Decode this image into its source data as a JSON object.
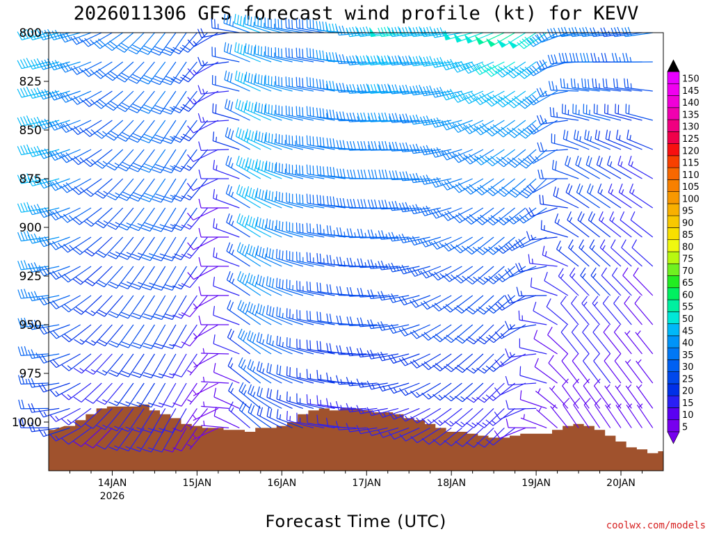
{
  "chart_data": {
    "type": "wind-barb-time-height",
    "title": "2026011306 GFS forecast wind profile (kt) for KEVV",
    "xlabel": "Forecast Time (UTC)",
    "ylabel": "",
    "credit": "coolwx.com/models",
    "x_range_hours": [
      0,
      174
    ],
    "x_step_hours": 3,
    "x_ticks": [
      {
        "label": "14JAN",
        "sublabel": "2026",
        "hour": 18
      },
      {
        "label": "15JAN",
        "sublabel": "",
        "hour": 42
      },
      {
        "label": "16JAN",
        "sublabel": "",
        "hour": 66
      },
      {
        "label": "17JAN",
        "sublabel": "",
        "hour": 90
      },
      {
        "label": "18JAN",
        "sublabel": "",
        "hour": 114
      },
      {
        "label": "19JAN",
        "sublabel": "",
        "hour": 138
      },
      {
        "label": "20JAN",
        "sublabel": "",
        "hour": 162
      }
    ],
    "y_range_hpa": [
      800,
      1025
    ],
    "y_ticks": [
      "800",
      "825",
      "850",
      "875",
      "900",
      "925",
      "950",
      "975",
      "1000"
    ],
    "pressure_levels": [
      800,
      815,
      830,
      845,
      860,
      875,
      890,
      905,
      920,
      935,
      950,
      965,
      980,
      993,
      1003
    ],
    "colorbar": {
      "min": 0,
      "max": 150,
      "step": 5,
      "labels": [
        "5",
        "10",
        "15",
        "20",
        "25",
        "30",
        "35",
        "40",
        "45",
        "50",
        "55",
        "60",
        "65",
        "70",
        "75",
        "80",
        "85",
        "90",
        "95",
        "100",
        "105",
        "110",
        "115",
        "120",
        "125",
        "130",
        "135",
        "140",
        "145",
        "150"
      ],
      "colors": [
        "#7700ee",
        "#5a00f2",
        "#2a1ff5",
        "#0030e8",
        "#0048ec",
        "#0060f2",
        "#0078f5",
        "#0094f8",
        "#00b8f8",
        "#00e8d8",
        "#00f0a0",
        "#00f060",
        "#22ec22",
        "#70f020",
        "#b8f810",
        "#f0f810",
        "#f8e000",
        "#f8c800",
        "#f8b000",
        "#f89800",
        "#f88000",
        "#f86800",
        "#f84000",
        "#f81010",
        "#f0004a",
        "#f00080",
        "#f000b0",
        "#f000d8",
        "#f000f0",
        "#e800ff"
      ]
    },
    "terrain_profile_hpa": [
      [
        0,
        1004
      ],
      [
        6,
        1002
      ],
      [
        9,
        999
      ],
      [
        12,
        996
      ],
      [
        15,
        993
      ],
      [
        18,
        992
      ],
      [
        21,
        992
      ],
      [
        24,
        992
      ],
      [
        27,
        991
      ],
      [
        30,
        994
      ],
      [
        33,
        996
      ],
      [
        36,
        998
      ],
      [
        39,
        1001
      ],
      [
        42,
        1002
      ],
      [
        45,
        1003
      ],
      [
        48,
        1003
      ],
      [
        51,
        1004
      ],
      [
        54,
        1004
      ],
      [
        57,
        1005
      ],
      [
        60,
        1003
      ],
      [
        63,
        1003
      ],
      [
        66,
        1002
      ],
      [
        69,
        1000
      ],
      [
        72,
        996
      ],
      [
        75,
        994
      ],
      [
        78,
        993
      ],
      [
        81,
        994
      ],
      [
        84,
        993
      ],
      [
        87,
        993
      ],
      [
        90,
        994
      ],
      [
        93,
        995
      ],
      [
        96,
        995
      ],
      [
        99,
        996
      ],
      [
        102,
        998
      ],
      [
        105,
        999
      ],
      [
        108,
        1001
      ],
      [
        111,
        1003
      ],
      [
        114,
        1005
      ],
      [
        117,
        1005
      ],
      [
        120,
        1006
      ],
      [
        123,
        1007
      ],
      [
        126,
        1008
      ],
      [
        129,
        1008
      ],
      [
        132,
        1007
      ],
      [
        135,
        1006
      ],
      [
        138,
        1006
      ],
      [
        141,
        1006
      ],
      [
        144,
        1004
      ],
      [
        147,
        1002
      ],
      [
        150,
        1001
      ],
      [
        153,
        1002
      ],
      [
        156,
        1004
      ],
      [
        159,
        1007
      ],
      [
        162,
        1010
      ],
      [
        165,
        1013
      ],
      [
        168,
        1014
      ],
      [
        171,
        1016
      ],
      [
        174,
        1015
      ]
    ],
    "wind_series": [
      {
        "level_hpa": 800,
        "speed_kt": [
          42,
          40,
          38,
          36,
          32,
          26,
          26,
          30,
          30,
          30,
          30,
          30,
          28,
          28,
          22,
          20,
          16,
          18,
          24,
          34,
          40,
          36,
          36,
          34,
          30,
          28,
          28,
          30,
          38,
          40,
          36,
          40,
          44,
          48,
          45,
          40,
          42,
          44,
          44,
          44,
          48,
          48,
          48,
          50,
          50,
          48,
          48,
          46,
          38,
          30,
          30,
          30,
          30,
          32,
          26,
          24,
          28,
          30
        ],
        "dir_deg": [
          255,
          255,
          255,
          255,
          250,
          245,
          240,
          235,
          230,
          225,
          220,
          218,
          216,
          215,
          220,
          225,
          240,
          260,
          280,
          290,
          290,
          288,
          285,
          282,
          280,
          280,
          280,
          280,
          275,
          270,
          265,
          262,
          262,
          262,
          262,
          262,
          262,
          262,
          262,
          260,
          255,
          250,
          248,
          245,
          240,
          238,
          236,
          235,
          240,
          250,
          260,
          262,
          262,
          262,
          262,
          262,
          262,
          262
        ]
      },
      {
        "level_hpa": 875,
        "speed_kt": [
          42,
          40,
          36,
          32,
          28,
          24,
          22,
          24,
          26,
          28,
          28,
          30,
          28,
          26,
          22,
          16,
          10,
          10,
          14,
          26,
          44,
          44,
          40,
          38,
          34,
          34,
          32,
          30,
          30,
          30,
          30,
          30,
          30,
          30,
          30,
          30,
          30,
          32,
          32,
          30,
          30,
          30,
          30,
          32,
          32,
          30,
          30,
          28,
          22,
          20,
          20,
          20,
          22,
          22,
          18,
          16,
          14,
          14
        ],
        "dir_deg": [
          260,
          255,
          250,
          245,
          240,
          235,
          230,
          225,
          220,
          218,
          216,
          214,
          212,
          212,
          216,
          220,
          245,
          270,
          290,
          300,
          300,
          296,
          292,
          288,
          285,
          282,
          280,
          280,
          278,
          276,
          272,
          270,
          270,
          270,
          270,
          268,
          266,
          262,
          258,
          252,
          246,
          240,
          236,
          234,
          232,
          230,
          228,
          226,
          240,
          270,
          290,
          300,
          300,
          300,
          300,
          300,
          300,
          300
        ]
      },
      {
        "level_hpa": 950,
        "speed_kt": [
          32,
          28,
          24,
          20,
          18,
          16,
          16,
          18,
          20,
          20,
          20,
          20,
          18,
          16,
          12,
          8,
          6,
          8,
          12,
          22,
          34,
          34,
          30,
          28,
          26,
          24,
          22,
          20,
          20,
          20,
          20,
          20,
          20,
          20,
          20,
          20,
          20,
          20,
          20,
          20,
          20,
          20,
          18,
          18,
          18,
          16,
          16,
          14,
          10,
          10,
          12,
          12,
          14,
          14,
          10,
          10,
          8,
          8
        ],
        "dir_deg": [
          265,
          260,
          250,
          240,
          232,
          225,
          222,
          220,
          216,
          214,
          212,
          210,
          210,
          210,
          214,
          220,
          240,
          270,
          290,
          305,
          305,
          300,
          296,
          292,
          288,
          285,
          282,
          280,
          278,
          274,
          270,
          268,
          266,
          262,
          258,
          252,
          246,
          240,
          236,
          232,
          230,
          228,
          226,
          226,
          230,
          240,
          260,
          280,
          300,
          310,
          320,
          320,
          320,
          320,
          320,
          320,
          320,
          320
        ]
      },
      {
        "level_hpa": 1000,
        "speed_kt": [
          20,
          18,
          16,
          14,
          12,
          10,
          10,
          12,
          14,
          14,
          14,
          14,
          12,
          10,
          8,
          6,
          4,
          6,
          8,
          14,
          22,
          22,
          20,
          18,
          16,
          14,
          14,
          12,
          12,
          12,
          12,
          12,
          12,
          12,
          12,
          12,
          12,
          12,
          12,
          12,
          12,
          12,
          12,
          12,
          12,
          10,
          10,
          8,
          6,
          6,
          8,
          8,
          8,
          8,
          6,
          6,
          6,
          6
        ],
        "dir_deg": [
          270,
          262,
          252,
          242,
          234,
          228,
          224,
          220,
          216,
          214,
          212,
          210,
          210,
          210,
          214,
          220,
          245,
          275,
          295,
          310,
          310,
          304,
          298,
          294,
          290,
          286,
          282,
          280,
          278,
          272,
          266,
          262,
          258,
          254,
          250,
          246,
          242,
          238,
          234,
          232,
          230,
          228,
          226,
          226,
          232,
          248,
          270,
          290,
          310,
          320,
          325,
          325,
          325,
          325,
          325,
          325,
          325,
          325
        ]
      }
    ]
  }
}
